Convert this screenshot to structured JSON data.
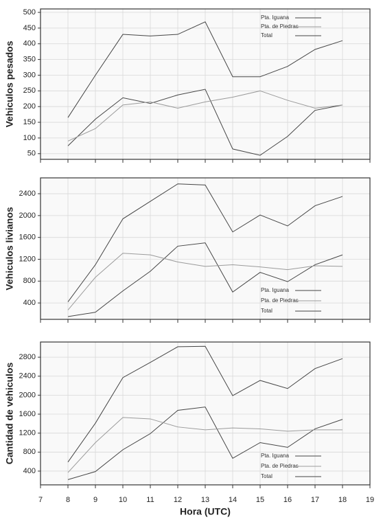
{
  "chart_data": [
    {
      "type": "line",
      "ylabel": "Vehiculos pesados",
      "x": [
        8,
        9,
        10,
        11,
        12,
        13,
        14,
        15,
        16,
        17,
        18
      ],
      "series": [
        {
          "name": "Pta. Iguana",
          "color": "#444444",
          "values": [
            75,
            160,
            228,
            210,
            237,
            255,
            65,
            45,
            105,
            188,
            205
          ]
        },
        {
          "name": "Pta. de Piedras",
          "color": "#9a9a9a",
          "values": [
            90,
            130,
            205,
            215,
            195,
            215,
            230,
            250,
            220,
            195,
            205
          ]
        },
        {
          "name": "Total",
          "color": "#444444",
          "values": [
            165,
            300,
            430,
            425,
            430,
            470,
            295,
            295,
            328,
            382,
            410
          ]
        }
      ],
      "xlim": [
        7,
        19
      ],
      "xticks": [
        7,
        8,
        9,
        10,
        11,
        12,
        13,
        14,
        15,
        16,
        17,
        18,
        19
      ],
      "ylim": [
        32,
        511
      ],
      "yticks": [
        50,
        100,
        150,
        200,
        250,
        300,
        350,
        400,
        450,
        500
      ],
      "grid": true,
      "legend": "upper right"
    },
    {
      "type": "line",
      "ylabel": "Vehiculos livianos",
      "x": [
        8,
        9,
        10,
        11,
        12,
        13,
        14,
        15,
        16,
        17,
        18
      ],
      "series": [
        {
          "name": "Pta. Iguana",
          "color": "#444444",
          "values": [
            150,
            230,
            620,
            980,
            1440,
            1500,
            600,
            960,
            790,
            1100,
            1280
          ]
        },
        {
          "name": "Pta. de Piedras",
          "color": "#9a9a9a",
          "values": [
            270,
            870,
            1310,
            1280,
            1150,
            1070,
            1100,
            1060,
            1010,
            1080,
            1070
          ]
        },
        {
          "name": "Total",
          "color": "#444444",
          "values": [
            420,
            1100,
            1940,
            2260,
            2580,
            2560,
            1700,
            2010,
            1810,
            2180,
            2350
          ]
        }
      ],
      "xlim": [
        7,
        19
      ],
      "xticks": [
        7,
        8,
        9,
        10,
        11,
        12,
        13,
        14,
        15,
        16,
        17,
        18,
        19
      ],
      "ylim": [
        100,
        2690
      ],
      "yticks": [
        400,
        800,
        1200,
        1600,
        2000,
        2400
      ],
      "grid": true,
      "legend": "lower right"
    },
    {
      "type": "line",
      "ylabel": "Cantidad de vehiculos",
      "xlabel": "Hora (UTC)",
      "x": [
        8,
        9,
        10,
        11,
        12,
        13,
        14,
        15,
        16,
        17,
        18
      ],
      "series": [
        {
          "name": "Pta. Iguana",
          "color": "#444444",
          "values": [
            220,
            390,
            850,
            1190,
            1680,
            1750,
            670,
            1000,
            900,
            1290,
            1490
          ]
        },
        {
          "name": "Pta. de Piedras",
          "color": "#9a9a9a",
          "values": [
            370,
            1000,
            1530,
            1500,
            1330,
            1270,
            1310,
            1290,
            1240,
            1270,
            1270
          ]
        },
        {
          "name": "Total",
          "color": "#444444",
          "values": [
            590,
            1410,
            2370,
            2690,
            3020,
            3030,
            1990,
            2310,
            2140,
            2560,
            2770
          ]
        }
      ],
      "xlim": [
        7,
        19
      ],
      "xticks": [
        7,
        8,
        9,
        10,
        11,
        12,
        13,
        14,
        15,
        16,
        17,
        18,
        19
      ],
      "ylim": [
        110,
        3120
      ],
      "yticks": [
        400,
        800,
        1200,
        1600,
        2000,
        2400,
        2800
      ],
      "grid": true,
      "legend": "lower right"
    }
  ]
}
